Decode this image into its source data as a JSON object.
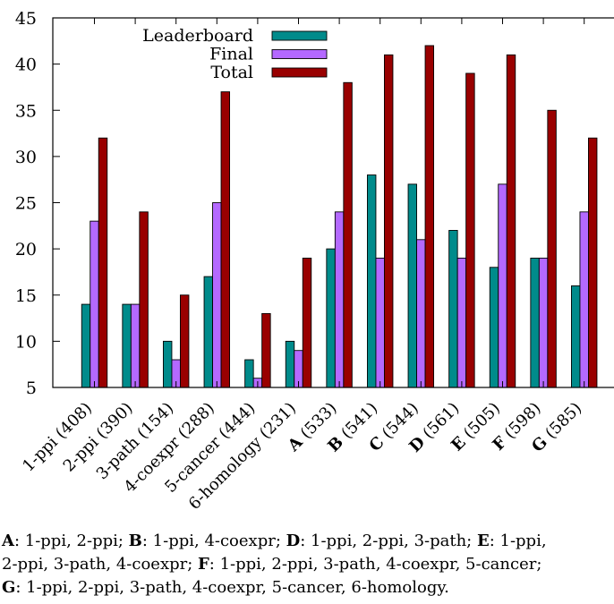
{
  "colors": {
    "leaderboard": "#008b8b",
    "final": "#b469ff",
    "total": "#990000",
    "axis": "#000000"
  },
  "chart_data": {
    "type": "bar",
    "categories": [
      {
        "key": "",
        "label": "1-ppi (408)"
      },
      {
        "key": "",
        "label": "2-ppi (390)"
      },
      {
        "key": "",
        "label": "3-path (154)"
      },
      {
        "key": "",
        "label": "4-coexpr (288)"
      },
      {
        "key": "",
        "label": "5-cancer (444)"
      },
      {
        "key": "",
        "label": "6-homology (231)"
      },
      {
        "key": "A",
        "label": " (533)"
      },
      {
        "key": "B",
        "label": " (541)"
      },
      {
        "key": "C",
        "label": " (544)"
      },
      {
        "key": "D",
        "label": " (561)"
      },
      {
        "key": "E",
        "label": " (505)"
      },
      {
        "key": "F",
        "label": " (598)"
      },
      {
        "key": "G",
        "label": " (585)"
      }
    ],
    "series": [
      {
        "name": "Leaderboard",
        "color_key": "leaderboard",
        "values": [
          14,
          14,
          10,
          17,
          8,
          10,
          20,
          28,
          27,
          22,
          18,
          19,
          16
        ]
      },
      {
        "name": "Final",
        "color_key": "final",
        "values": [
          23,
          14,
          8,
          25,
          6,
          9,
          24,
          19,
          21,
          19,
          27,
          19,
          24
        ]
      },
      {
        "name": "Total",
        "color_key": "total",
        "values": [
          32,
          24,
          15,
          37,
          13,
          19,
          38,
          41,
          42,
          39,
          41,
          35,
          32
        ]
      }
    ],
    "ylim": [
      5,
      45
    ],
    "yticks": [
      "5",
      "10",
      "15",
      "20",
      "25",
      "30",
      "35",
      "40",
      "45"
    ],
    "legend_position": "top-left",
    "grid": false
  },
  "caption": {
    "lines": [
      [
        {
          "key": "A",
          "text": ": 1-ppi, 2-ppi; "
        },
        {
          "key": "B",
          "text": ": 1-ppi, 4-coexpr; "
        },
        {
          "key": "D",
          "text": ": 1-ppi, 2-ppi, 3-path; "
        },
        {
          "key": "E",
          "text": ": 1-ppi,"
        }
      ],
      [
        {
          "key": "",
          "text": "2-ppi, 3-path, 4-coexpr; "
        },
        {
          "key": "F",
          "text": ": 1-ppi, 2-ppi, 3-path, 4-coexpr, 5-cancer;"
        }
      ],
      [
        {
          "key": "G",
          "text": ": 1-ppi, 2-ppi, 3-path, 4-coexpr, 5-cancer, 6-homology."
        }
      ]
    ]
  }
}
